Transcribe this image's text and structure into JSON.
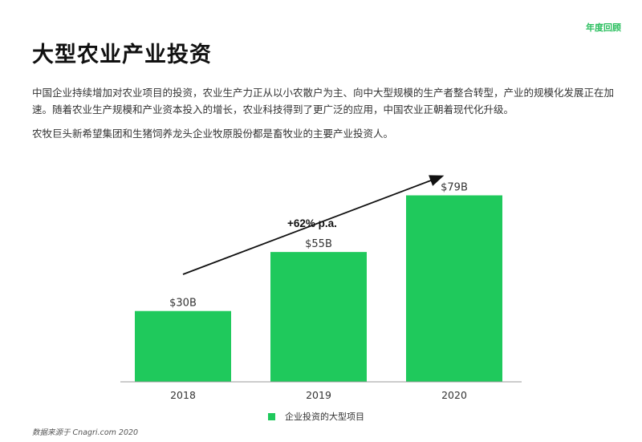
{
  "header": {
    "tag": "年度回顾",
    "title": "大型农业产业投资"
  },
  "body": {
    "paragraph_1": "中国企业持续增加对农业项目的投资，农业生产力正从以小农散户为主、向中大型规模的生产者整合转型，产业的规模化发展正在加速。随着农业生产规模和产业资本投入的增长，农业科技得到了更广泛的应用，中国农业正朝着现代化升级。",
    "paragraph_2": "农牧巨头新希望集团和生猪饲养龙头企业牧原股份都是畜牧业的主要产业投资人。"
  },
  "chart_data": {
    "type": "bar",
    "categories": [
      "2018",
      "2019",
      "2020"
    ],
    "values": [
      30,
      55,
      79
    ],
    "value_labels": [
      "$30B",
      "$55B",
      "$79B"
    ],
    "ylim": [
      0,
      85
    ],
    "series": [
      {
        "name": "企业投资的大型项目",
        "values": [
          30,
          55,
          79
        ]
      }
    ],
    "annotation": "+62% p.a.",
    "legend_position": "bottom-center",
    "bar_color": "#1fc95c",
    "grid": false
  },
  "footer": {
    "source": "数据来源于 Cnagri.com 2020"
  },
  "colors": {
    "accent": "#2bbf5f",
    "bar": "#1fc95c"
  }
}
